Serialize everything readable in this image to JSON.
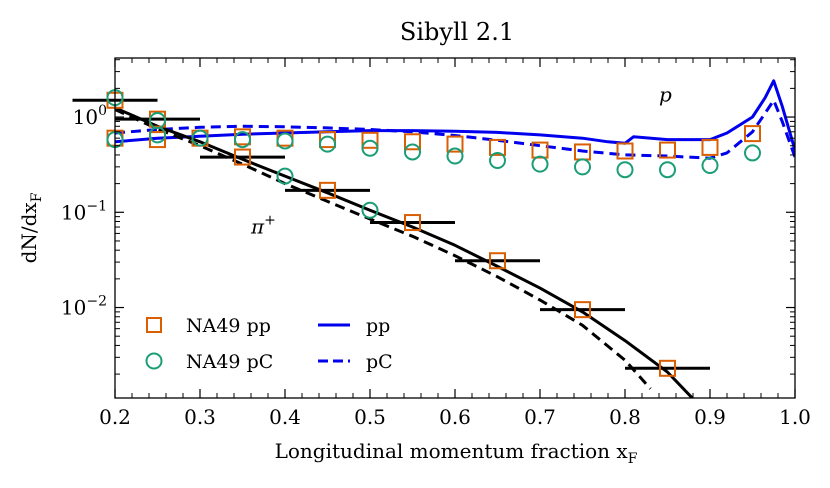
{
  "chart_data": {
    "type": "line",
    "title": "Sibyll 2.1",
    "xlabel": "Longitudinal momentum fraction x",
    "xlabel_sub": "F",
    "ylabel": "dN/dx",
    "ylabel_sub": "F",
    "xlim": [
      0.2,
      1.0
    ],
    "ylim_log10": [
      -2.95,
      0.62
    ],
    "yscale": "log",
    "x_ticks": [
      0.2,
      0.3,
      0.4,
      0.5,
      0.6,
      0.7,
      0.8,
      0.9,
      1.0
    ],
    "x_tick_labels": [
      "0.2",
      "0.3",
      "0.4",
      "0.5",
      "0.6",
      "0.7",
      "0.8",
      "0.9",
      "1.0"
    ],
    "y_ticks": [
      {
        "value": 1,
        "base": "10",
        "exp": "0"
      },
      {
        "value": 0.1,
        "base": "10",
        "exp": "−1"
      },
      {
        "value": 0.01,
        "base": "10",
        "exp": "−2"
      }
    ],
    "annotations": [
      {
        "text": "p",
        "x": 0.84,
        "y": 1.45
      },
      {
        "text": "π",
        "sup": "+",
        "x": 0.36,
        "y": 0.06
      }
    ],
    "legend": {
      "placement": "bottom-left",
      "entries": [
        {
          "label": "NA49 pp",
          "marker": "square",
          "color": "#d95f02"
        },
        {
          "label": "NA49 pC",
          "marker": "circle",
          "color": "#1b9e77"
        },
        {
          "label": "pp",
          "line": "solid",
          "color": "#0000ee"
        },
        {
          "label": "pC",
          "line": "dashed",
          "color": "#0000ee"
        }
      ]
    },
    "series": [
      {
        "name": "Sibyll pp (proton)",
        "kind": "line",
        "style": "solid",
        "color": "#0000ee",
        "x": [
          0.2,
          0.25,
          0.3,
          0.35,
          0.4,
          0.45,
          0.5,
          0.55,
          0.6,
          0.65,
          0.7,
          0.75,
          0.78,
          0.8,
          0.81,
          0.85,
          0.9,
          0.92,
          0.95,
          0.965,
          0.975,
          0.985,
          1.0
        ],
        "y": [
          0.55,
          0.6,
          0.63,
          0.66,
          0.68,
          0.7,
          0.72,
          0.72,
          0.71,
          0.69,
          0.65,
          0.6,
          0.55,
          0.53,
          0.62,
          0.58,
          0.58,
          0.68,
          1.0,
          1.6,
          2.4,
          1.3,
          0.45
        ]
      },
      {
        "name": "Sibyll pC (proton)",
        "kind": "line",
        "style": "dashed",
        "color": "#0000ee",
        "x": [
          0.2,
          0.25,
          0.3,
          0.35,
          0.4,
          0.45,
          0.5,
          0.55,
          0.6,
          0.65,
          0.7,
          0.75,
          0.8,
          0.85,
          0.9,
          0.92,
          0.95,
          0.965,
          0.975,
          0.985,
          1.0
        ],
        "y": [
          0.68,
          0.74,
          0.78,
          0.8,
          0.79,
          0.77,
          0.74,
          0.7,
          0.64,
          0.57,
          0.5,
          0.44,
          0.4,
          0.39,
          0.37,
          0.42,
          0.7,
          1.1,
          1.5,
          0.9,
          0.38
        ]
      },
      {
        "name": "Sibyll pp (π+)",
        "kind": "line",
        "style": "solid",
        "color": "#000000",
        "x": [
          0.2,
          0.25,
          0.3,
          0.35,
          0.4,
          0.45,
          0.5,
          0.55,
          0.6,
          0.65,
          0.7,
          0.75,
          0.8,
          0.85,
          0.88
        ],
        "y": [
          1.25,
          0.8,
          0.55,
          0.36,
          0.24,
          0.16,
          0.105,
          0.07,
          0.045,
          0.027,
          0.016,
          0.009,
          0.0045,
          0.0021,
          0.0011
        ]
      },
      {
        "name": "Sibyll pC (π+)",
        "kind": "line",
        "style": "dashed",
        "color": "#000000",
        "x": [
          0.2,
          0.25,
          0.3,
          0.35,
          0.4,
          0.45,
          0.5,
          0.55,
          0.6,
          0.65,
          0.7,
          0.75,
          0.8,
          0.83
        ],
        "y": [
          1.2,
          0.75,
          0.5,
          0.32,
          0.2,
          0.13,
          0.085,
          0.056,
          0.035,
          0.021,
          0.012,
          0.0065,
          0.0028,
          0.0014
        ]
      },
      {
        "name": "NA49 pp (proton)",
        "kind": "marker",
        "marker": "square",
        "color": "#d95f02",
        "x": [
          0.2,
          0.25,
          0.3,
          0.35,
          0.4,
          0.45,
          0.5,
          0.55,
          0.6,
          0.65,
          0.7,
          0.75,
          0.8,
          0.85,
          0.9,
          0.95
        ],
        "y": [
          0.6,
          0.58,
          0.6,
          0.62,
          0.6,
          0.58,
          0.57,
          0.55,
          0.52,
          0.48,
          0.45,
          0.43,
          0.44,
          0.45,
          0.48,
          0.67
        ]
      },
      {
        "name": "NA49 pC (proton)",
        "kind": "marker",
        "marker": "circle",
        "color": "#1b9e77",
        "x": [
          0.2,
          0.25,
          0.3,
          0.35,
          0.4,
          0.45,
          0.5,
          0.55,
          0.6,
          0.65,
          0.7,
          0.75,
          0.8,
          0.85,
          0.9,
          0.95
        ],
        "y": [
          0.58,
          0.65,
          0.6,
          0.58,
          0.56,
          0.52,
          0.47,
          0.43,
          0.39,
          0.35,
          0.32,
          0.3,
          0.28,
          0.28,
          0.31,
          0.42
        ]
      },
      {
        "name": "NA49 pp (π+)",
        "kind": "marker",
        "marker": "square",
        "color": "#d95f02",
        "xerr": 0.05,
        "x": [
          0.2,
          0.25,
          0.35,
          0.45,
          0.55,
          0.65,
          0.75,
          0.85
        ],
        "y": [
          1.5,
          0.95,
          0.38,
          0.17,
          0.078,
          0.031,
          0.0095,
          0.0023
        ]
      },
      {
        "name": "NA49 pC (π+)",
        "kind": "marker",
        "marker": "circle",
        "color": "#1b9e77",
        "x": [
          0.2,
          0.25,
          0.4,
          0.5
        ],
        "y": [
          1.6,
          0.92,
          0.24,
          0.105
        ]
      }
    ]
  }
}
